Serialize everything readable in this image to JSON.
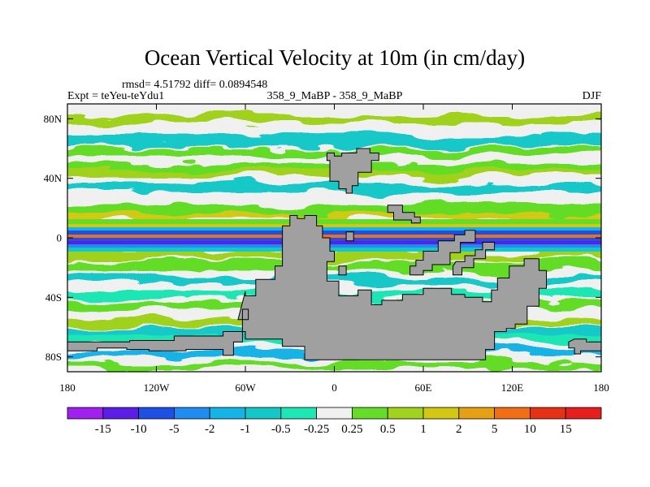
{
  "chart_data": {
    "type": "heatmap",
    "title": "Ocean Vertical Velocity at 10m (in cm/day)",
    "stats": "rmsd= 4.51792 diff= 0.0894548",
    "left_label": "Expt = teYeu-teYdu1",
    "center_label": "358_9_MaBP - 358_9_MaBP",
    "right_label": "DJF",
    "x_ticks": [
      {
        "value": -180,
        "label": "180"
      },
      {
        "value": -120,
        "label": "120W"
      },
      {
        "value": -60,
        "label": "60W"
      },
      {
        "value": 0,
        "label": "0"
      },
      {
        "value": 60,
        "label": "60E"
      },
      {
        "value": 120,
        "label": "120E"
      },
      {
        "value": 180,
        "label": "180"
      }
    ],
    "y_ticks": [
      {
        "value": 80,
        "label": "80N"
      },
      {
        "value": 40,
        "label": "40N"
      },
      {
        "value": 0,
        "label": "0"
      },
      {
        "value": -40,
        "label": "40S"
      },
      {
        "value": -80,
        "label": "80S"
      }
    ],
    "xlim": [
      -180,
      180
    ],
    "ylim": [
      -90,
      90
    ],
    "colorbar": {
      "boundaries": [
        "-15",
        "-10",
        "-5",
        "-2",
        "-1",
        "-0.5",
        "-0.25",
        "0.25",
        "0.5",
        "1",
        "2",
        "5",
        "10",
        "15"
      ],
      "colors": [
        "#a020f0",
        "#5a1ee6",
        "#1e50e6",
        "#1e8cf0",
        "#14b4e6",
        "#14c8c8",
        "#1ee6b4",
        "#f0f0f0",
        "#64dc28",
        "#a0d21e",
        "#d2c814",
        "#e6a014",
        "#f06e14",
        "#e63214",
        "#e61e1e"
      ]
    },
    "land_color": "#a0a0a0",
    "land_mask": [
      {
        "name": "north-continent",
        "lonlat": [
          [
            -5,
            57
          ],
          [
            -5,
            52
          ],
          [
            -3,
            52
          ],
          [
            -3,
            38
          ],
          [
            3,
            38
          ],
          [
            3,
            33
          ],
          [
            8,
            33
          ],
          [
            8,
            30
          ],
          [
            12,
            30
          ],
          [
            12,
            35
          ],
          [
            16,
            35
          ],
          [
            16,
            44
          ],
          [
            25,
            44
          ],
          [
            25,
            52
          ],
          [
            30,
            52
          ],
          [
            30,
            57
          ],
          [
            24,
            57
          ],
          [
            24,
            60
          ],
          [
            15,
            60
          ],
          [
            15,
            57
          ],
          [
            5,
            57
          ],
          [
            5,
            55
          ],
          [
            0,
            55
          ],
          [
            0,
            57
          ]
        ]
      },
      {
        "name": "north-island",
        "lonlat": [
          [
            36,
            22
          ],
          [
            36,
            17
          ],
          [
            40,
            17
          ],
          [
            40,
            12
          ],
          [
            52,
            12
          ],
          [
            52,
            10
          ],
          [
            58,
            10
          ],
          [
            58,
            14
          ],
          [
            54,
            14
          ],
          [
            54,
            17
          ],
          [
            46,
            17
          ],
          [
            46,
            22
          ]
        ]
      },
      {
        "name": "islet-1",
        "lonlat": [
          [
            -27,
            -16
          ],
          [
            -27,
            -22
          ],
          [
            -23,
            -22
          ],
          [
            -23,
            -16
          ]
        ]
      },
      {
        "name": "islet-2",
        "lonlat": [
          [
            3,
            -19
          ],
          [
            3,
            -25
          ],
          [
            8,
            -25
          ],
          [
            8,
            -19
          ]
        ]
      },
      {
        "name": "islet-3",
        "lonlat": [
          [
            -19,
            -31
          ],
          [
            -19,
            -36
          ],
          [
            -15,
            -36
          ],
          [
            -15,
            -31
          ]
        ]
      },
      {
        "name": "islet-4",
        "lonlat": [
          [
            8,
            4
          ],
          [
            8,
            -2
          ],
          [
            13,
            -2
          ],
          [
            13,
            4
          ]
        ]
      },
      {
        "name": "east-landmass",
        "lonlat": [
          [
            51,
            -19
          ],
          [
            51,
            -25
          ],
          [
            60,
            -25
          ],
          [
            60,
            -22
          ],
          [
            66,
            -22
          ],
          [
            66,
            -18
          ],
          [
            78,
            -18
          ],
          [
            78,
            -10
          ],
          [
            85,
            -10
          ],
          [
            85,
            -3
          ],
          [
            95,
            -3
          ],
          [
            95,
            5
          ],
          [
            88,
            5
          ],
          [
            88,
            2
          ],
          [
            81,
            2
          ],
          [
            81,
            -2
          ],
          [
            70,
            -2
          ],
          [
            70,
            -9
          ],
          [
            60,
            -9
          ],
          [
            60,
            -15
          ],
          [
            55,
            -15
          ],
          [
            55,
            -19
          ]
        ]
      },
      {
        "name": "east-sliver",
        "lonlat": [
          [
            80,
            -19
          ],
          [
            80,
            -25
          ],
          [
            86,
            -25
          ],
          [
            86,
            -20
          ],
          [
            94,
            -20
          ],
          [
            94,
            -14
          ],
          [
            102,
            -14
          ],
          [
            102,
            -8
          ],
          [
            108,
            -8
          ],
          [
            108,
            -3
          ],
          [
            100,
            -3
          ],
          [
            100,
            -8
          ],
          [
            95,
            -8
          ],
          [
            95,
            -12
          ],
          [
            88,
            -12
          ],
          [
            88,
            -16
          ],
          [
            82,
            -16
          ]
        ]
      },
      {
        "name": "main-landmass",
        "lonlat": [
          [
            -60,
            -36
          ],
          [
            -60,
            -39
          ],
          [
            -53,
            -39
          ],
          [
            -53,
            -28
          ],
          [
            -40,
            -28
          ],
          [
            -40,
            -19
          ],
          [
            -35,
            -19
          ],
          [
            -35,
            8
          ],
          [
            -30,
            8
          ],
          [
            -30,
            15
          ],
          [
            -25,
            15
          ],
          [
            -25,
            13
          ],
          [
            -20,
            13
          ],
          [
            -20,
            15
          ],
          [
            -12,
            15
          ],
          [
            -12,
            8
          ],
          [
            -8,
            8
          ],
          [
            -8,
            0
          ],
          [
            -3,
            0
          ],
          [
            -3,
            -9
          ],
          [
            0,
            -9
          ],
          [
            0,
            -16
          ],
          [
            -5,
            -16
          ],
          [
            -5,
            -29
          ],
          [
            3,
            -29
          ],
          [
            3,
            -39
          ],
          [
            16,
            -39
          ],
          [
            16,
            -35
          ],
          [
            25,
            -35
          ],
          [
            25,
            -45
          ],
          [
            32,
            -45
          ],
          [
            32,
            -42
          ],
          [
            46,
            -42
          ],
          [
            46,
            -38
          ],
          [
            60,
            -38
          ],
          [
            60,
            -34
          ],
          [
            79,
            -34
          ],
          [
            79,
            -38
          ],
          [
            88,
            -38
          ],
          [
            88,
            -40
          ],
          [
            100,
            -40
          ],
          [
            100,
            -43
          ],
          [
            106,
            -43
          ],
          [
            106,
            -35
          ],
          [
            110,
            -35
          ],
          [
            110,
            -27
          ],
          [
            118,
            -27
          ],
          [
            118,
            -19
          ],
          [
            128,
            -19
          ],
          [
            128,
            -14
          ],
          [
            138,
            -14
          ],
          [
            138,
            -22
          ],
          [
            143,
            -22
          ],
          [
            143,
            -34
          ],
          [
            138,
            -34
          ],
          [
            138,
            -46
          ],
          [
            130,
            -46
          ],
          [
            130,
            -58
          ],
          [
            122,
            -58
          ],
          [
            122,
            -61
          ],
          [
            116,
            -61
          ],
          [
            116,
            -63
          ],
          [
            108,
            -63
          ],
          [
            108,
            -75
          ],
          [
            102,
            -75
          ],
          [
            102,
            -82
          ],
          [
            -20,
            -82
          ],
          [
            -20,
            -73
          ],
          [
            -35,
            -73
          ],
          [
            -35,
            -68
          ],
          [
            -60,
            -68
          ],
          [
            -60,
            -63
          ],
          [
            -75,
            -63
          ],
          [
            -75,
            -66
          ],
          [
            -108,
            -66
          ],
          [
            -108,
            -69
          ],
          [
            -138,
            -69
          ],
          [
            -138,
            -70
          ],
          [
            -180,
            -70
          ],
          [
            -180,
            -76
          ],
          [
            -160,
            -76
          ],
          [
            -160,
            -74
          ],
          [
            -140,
            -74
          ],
          [
            -140,
            -75
          ],
          [
            -125,
            -75
          ],
          [
            -125,
            -76
          ],
          [
            -100,
            -76
          ],
          [
            -100,
            -75
          ],
          [
            -75,
            -75
          ],
          [
            -75,
            -79
          ],
          [
            -68,
            -79
          ],
          [
            -68,
            -70
          ],
          [
            -62,
            -70
          ],
          [
            -62,
            -48
          ],
          [
            -58,
            -48
          ],
          [
            -58,
            -55
          ],
          [
            -65,
            -55
          ]
        ]
      },
      {
        "name": "far-east-strip",
        "lonlat": [
          [
            158,
            -70
          ],
          [
            158,
            -74
          ],
          [
            162,
            -74
          ],
          [
            162,
            -78
          ],
          [
            166,
            -78
          ],
          [
            166,
            -76
          ],
          [
            180,
            -76
          ],
          [
            180,
            -70
          ],
          [
            170,
            -70
          ],
          [
            170,
            -68
          ],
          [
            162,
            -68
          ]
        ]
      }
    ]
  }
}
